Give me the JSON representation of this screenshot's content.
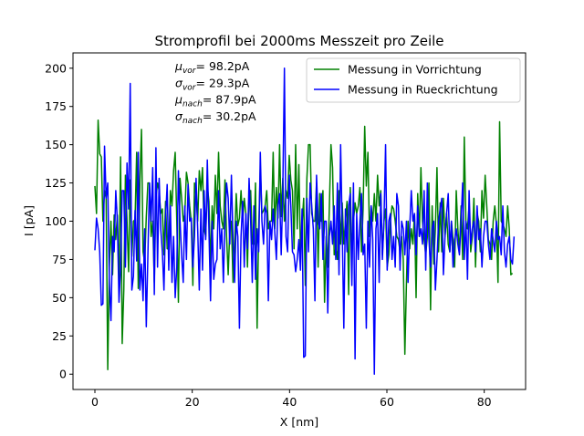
{
  "chart_data": {
    "type": "line",
    "title": "Stromprofil bei 2000ms Messzeit pro Zeile",
    "xlabel": "X [nm]",
    "ylabel": "I [pA]",
    "xlim": [
      -4.5,
      88.5
    ],
    "ylim": [
      -10,
      210
    ],
    "xticks": [
      0,
      20,
      40,
      60,
      80
    ],
    "yticks": [
      0,
      25,
      50,
      75,
      100,
      125,
      150,
      175,
      200
    ],
    "grid": false,
    "legend_position": "top-right",
    "stats": [
      {
        "symbol": "μ",
        "sub": "vor",
        "value": "= 98.2pA"
      },
      {
        "symbol": "σ",
        "sub": "vor",
        "value": "= 29.3pA"
      },
      {
        "symbol": "μ",
        "sub": "nach",
        "value": "= 87.9pA"
      },
      {
        "symbol": "σ",
        "sub": "nach",
        "value": "= 30.2pA"
      }
    ],
    "series": [
      {
        "name": "Messung in Vorrichtung",
        "color": "#008000",
        "x_start": 0,
        "x_step": 0.33,
        "values": [
          123,
          105,
          166,
          144,
          142,
          100,
          120,
          115,
          3,
          70,
          100,
          65,
          104,
          88,
          104,
          60,
          142,
          20,
          55,
          130,
          100,
          67,
          127,
          77,
          100,
          101,
          145,
          56,
          125,
          160,
          80,
          73,
          103,
          125,
          125,
          90,
          100,
          60,
          115,
          125,
          120,
          105,
          108,
          78,
          113,
          82,
          82,
          120,
          110,
          133,
          145,
          100,
          47,
          128,
          115,
          100,
          105,
          132,
          125,
          110,
          100,
          58,
          125,
          117,
          100,
          133,
          120,
          135,
          95,
          90,
          123,
          113,
          70,
          110,
          95,
          130,
          105,
          145,
          110,
          100,
          95,
          127,
          90,
          65,
          95,
          100,
          60,
          85,
          118,
          97,
          102,
          120,
          100,
          115,
          105,
          70,
          118,
          120,
          85,
          85,
          125,
          30,
          95,
          135,
          105,
          107,
          110,
          120,
          95,
          100,
          100,
          145,
          95,
          122,
          102,
          150,
          103,
          128,
          100,
          120,
          115,
          143,
          127,
          120,
          82,
          150,
          95,
          137,
          80,
          98,
          115,
          58,
          128,
          150,
          150,
          105,
          100,
          100,
          125,
          70,
          118,
          100,
          120,
          47,
          90,
          70,
          110,
          150,
          135,
          78,
          82,
          75,
          120,
          85,
          112,
          85,
          100,
          113,
          52,
          122,
          80,
          100,
          112,
          105,
          110,
          122,
          80,
          108,
          162,
          123,
          145,
          90,
          110,
          100,
          118,
          100,
          130,
          110,
          120,
          78,
          100,
          108,
          70,
          78,
          100,
          110,
          108,
          100,
          90,
          88,
          80,
          90,
          75,
          13,
          60,
          100,
          82,
          95,
          85,
          105,
          50,
          118,
          90,
          135,
          100,
          88,
          78,
          90,
          125,
          42,
          110,
          72,
          95,
          135,
          80,
          112,
          80,
          115,
          90,
          105,
          85,
          80,
          100,
          88,
          70,
          120,
          95,
          80,
          110,
          75,
          155,
          100,
          95,
          110,
          80,
          90,
          115,
          70,
          105,
          100,
          80,
          120,
          102,
          130,
          110,
          88,
          85,
          75,
          100,
          110,
          98,
          60,
          165,
          100,
          98,
          95,
          90,
          110,
          95,
          65,
          66
        ]
      },
      {
        "name": "Messung in Rueckrichtung",
        "color": "#0000ff",
        "x_start": 0,
        "x_step": 0.33,
        "values": [
          81,
          102,
          95,
          80,
          45,
          46,
          149,
          115,
          125,
          60,
          35,
          90,
          80,
          120,
          100,
          47,
          70,
          120,
          120,
          70,
          138,
          108,
          190,
          55,
          64,
          107,
          74,
          145,
          55,
          72,
          48,
          95,
          31,
          78,
          125,
          100,
          135,
          52,
          148,
          70,
          128,
          95,
          80,
          55,
          102,
          124,
          68,
          110,
          60,
          90,
          50,
          70,
          133,
          100,
          78,
          60,
          110,
          75,
          124,
          100,
          102,
          70,
          90,
          128,
          95,
          55,
          108,
          68,
          120,
          88,
          140,
          95,
          48,
          100,
          62,
          72,
          75,
          120,
          82,
          95,
          60,
          100,
          125,
          115,
          85,
          130,
          88,
          60,
          100,
          90,
          30,
          90,
          113,
          70,
          105,
          82,
          128,
          100,
          60,
          110,
          62,
          95,
          80,
          145,
          100,
          85,
          110,
          105,
          48,
          100,
          88,
          108,
          93,
          75,
          110,
          118,
          78,
          120,
          200,
          90,
          80,
          130,
          110,
          80,
          78,
          67,
          75,
          88,
          68,
          108,
          11,
          12,
          115,
          80,
          125,
          110,
          95,
          48,
          130,
          100,
          95,
          118,
          75,
          100,
          100,
          40,
          90,
          100,
          85,
          110,
          75,
          125,
          65,
          150,
          95,
          30,
          108,
          80,
          110,
          118,
          58,
          125,
          10,
          105,
          75,
          100,
          118,
          78,
          85,
          30,
          100,
          70,
          110,
          88,
          0,
          95,
          105,
          60,
          118,
          75,
          100,
          150,
          68,
          100,
          105,
          75,
          90,
          70,
          118,
          110,
          68,
          100,
          95,
          78,
          100,
          60,
          95,
          120,
          100,
          105,
          78,
          110,
          90,
          95,
          85,
          120,
          68,
          125,
          88,
          70,
          95,
          100,
          55,
          75,
          100,
          108,
          115,
          65,
          90,
          105,
          118,
          80,
          100,
          70,
          88,
          95,
          85,
          78,
          100,
          125,
          75,
          100,
          62,
          120,
          85,
          95,
          100,
          80,
          110,
          88,
          95,
          70,
          90,
          100,
          100,
          85,
          75,
          95,
          88,
          80,
          100,
          88,
          90,
          78,
          110,
          80,
          70,
          85,
          90,
          75,
          72,
          90
        ]
      }
    ]
  }
}
